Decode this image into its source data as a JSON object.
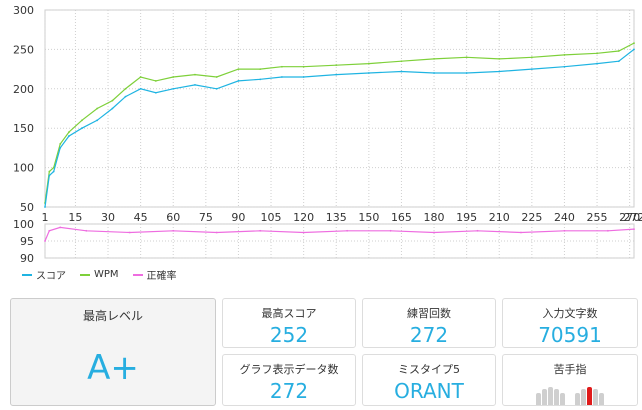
{
  "legend": [
    {
      "label": "スコア",
      "color": "#1fb4e2"
    },
    {
      "label": "WPM",
      "color": "#7ed03a"
    },
    {
      "label": "正確率",
      "color": "#ee6de0"
    }
  ],
  "stats": {
    "level_label": "最高レベル",
    "level_value": "A+",
    "best_score_label": "最高スコア",
    "best_score_value": "252",
    "practice_count_label": "練習回数",
    "practice_count_value": "272",
    "chars_label": "入力文字数",
    "chars_value": "70591",
    "graph_data_label": "グラフ表示データ数",
    "graph_data_value": "272",
    "miss_label": "ミスタイプ5",
    "miss_value": "ORANT",
    "weak_finger_label": "苦手指",
    "weak_finger_index": 7
  },
  "chart_data": [
    {
      "type": "line",
      "x_range": [
        1,
        272
      ],
      "ylim": [
        50,
        300
      ],
      "yticks": [
        50,
        100,
        150,
        200,
        250,
        300
      ],
      "xticks": [
        1,
        15,
        30,
        45,
        60,
        75,
        90,
        105,
        120,
        135,
        150,
        165,
        180,
        195,
        210,
        225,
        240,
        255,
        270,
        272
      ],
      "grid": true,
      "series": [
        {
          "name": "スコア",
          "color": "#1fb4e2",
          "x": [
            1,
            3,
            5,
            8,
            12,
            18,
            25,
            32,
            38,
            45,
            52,
            60,
            70,
            80,
            90,
            100,
            110,
            120,
            135,
            150,
            165,
            180,
            195,
            210,
            225,
            240,
            255,
            265,
            272
          ],
          "y": [
            50,
            90,
            95,
            125,
            140,
            150,
            160,
            175,
            190,
            200,
            195,
            200,
            205,
            200,
            210,
            212,
            215,
            215,
            218,
            220,
            222,
            220,
            220,
            222,
            225,
            228,
            232,
            235,
            250
          ]
        },
        {
          "name": "WPM",
          "color": "#7ed03a",
          "x": [
            1,
            3,
            5,
            8,
            12,
            18,
            25,
            32,
            38,
            45,
            52,
            60,
            70,
            80,
            90,
            100,
            110,
            120,
            135,
            150,
            165,
            180,
            195,
            210,
            225,
            240,
            255,
            265,
            272
          ],
          "y": [
            55,
            95,
            100,
            130,
            145,
            160,
            175,
            185,
            200,
            215,
            210,
            215,
            218,
            215,
            225,
            225,
            228,
            228,
            230,
            232,
            235,
            238,
            240,
            238,
            240,
            243,
            245,
            248,
            258
          ]
        }
      ]
    },
    {
      "type": "line",
      "x_range": [
        1,
        272
      ],
      "ylim": [
        90,
        100
      ],
      "yticks": [
        90,
        95,
        100
      ],
      "grid": true,
      "series": [
        {
          "name": "正確率",
          "color": "#ee6de0",
          "x": [
            1,
            3,
            8,
            20,
            40,
            60,
            80,
            100,
            120,
            140,
            160,
            180,
            200,
            220,
            240,
            260,
            272
          ],
          "y": [
            95,
            98,
            99,
            98,
            97.5,
            98,
            97.5,
            98,
            97.5,
            98,
            98,
            97.5,
            98,
            97.5,
            98,
            98,
            98.5
          ]
        }
      ]
    }
  ]
}
